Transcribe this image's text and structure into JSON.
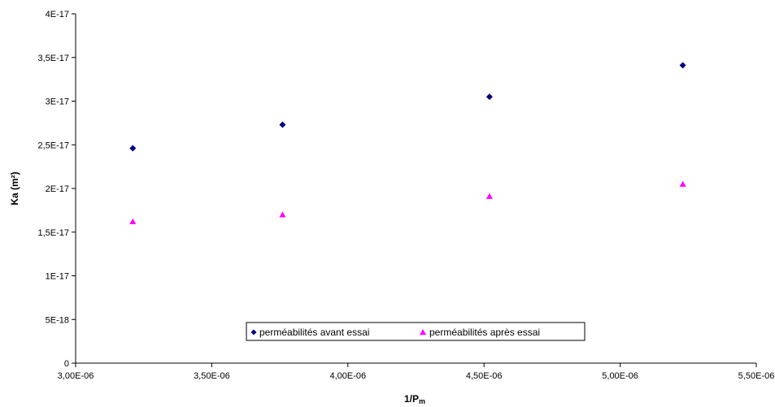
{
  "chart_data": {
    "type": "scatter",
    "title": "",
    "xlabel_main": "1/P",
    "xlabel_sub": "m",
    "ylabel": "Ka (m²)",
    "xlim": [
      3e-06,
      5.5e-06
    ],
    "ylim": [
      0,
      4e-17
    ],
    "x_ticks": [
      3e-06,
      3.5e-06,
      4e-06,
      4.5e-06,
      5e-06,
      5.5e-06
    ],
    "x_tick_labels": [
      "3,00E-06",
      "3,50E-06",
      "4,00E-06",
      "4,50E-06",
      "5,00E-06",
      "5,50E-06"
    ],
    "y_ticks": [
      0,
      5e-18,
      1e-17,
      1.5e-17,
      2e-17,
      2.5e-17,
      3e-17,
      3.5e-17,
      4e-17
    ],
    "y_tick_labels": [
      "0",
      "5E-18",
      "1E-17",
      "1,5E-17",
      "2E-17",
      "2,5E-17",
      "3E-17",
      "3,5E-17",
      "4E-17"
    ],
    "grid": false,
    "legend_position": "bottom-center",
    "series": [
      {
        "name": "perméabilités avant essai",
        "marker": "diamond",
        "color": "#000080",
        "x": [
          3.21e-06,
          3.76e-06,
          4.52e-06,
          5.23e-06
        ],
        "y": [
          2.46e-17,
          2.73e-17,
          3.05e-17,
          3.41e-17
        ]
      },
      {
        "name": "perméabilités après essai",
        "marker": "triangle",
        "color": "#ff00ff",
        "x": [
          3.21e-06,
          3.76e-06,
          4.52e-06,
          5.23e-06
        ],
        "y": [
          1.62e-17,
          1.7e-17,
          1.91e-17,
          2.05e-17
        ]
      }
    ]
  }
}
